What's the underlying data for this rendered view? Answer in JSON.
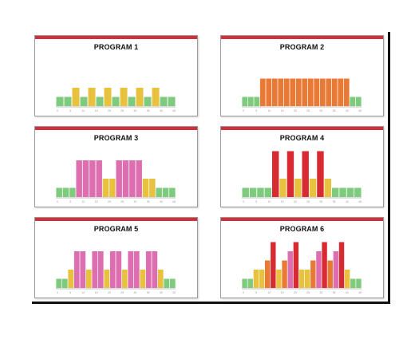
{
  "colors": {
    "green": "#7ecb7e",
    "yellow": "#e8c13e",
    "orange": "#e87a35",
    "pink": "#dd6fb0",
    "red": "#d82a33",
    "header": "#d32f3b",
    "axis": "#bbbbbb"
  },
  "chart_data": [
    {
      "type": "bar",
      "title": "PROGRAM 1",
      "x_ticks": [
        "0",
        "5",
        "10",
        "15",
        "20",
        "25",
        "30",
        "35",
        "40",
        "45"
      ],
      "bars": [
        {
          "v": 1,
          "c": "green"
        },
        {
          "v": 1,
          "c": "green"
        },
        {
          "v": 2,
          "c": "yellow"
        },
        {
          "v": 1,
          "c": "green"
        },
        {
          "v": 2,
          "c": "yellow"
        },
        {
          "v": 1,
          "c": "green"
        },
        {
          "v": 2,
          "c": "yellow"
        },
        {
          "v": 1,
          "c": "green"
        },
        {
          "v": 2,
          "c": "yellow"
        },
        {
          "v": 1,
          "c": "green"
        },
        {
          "v": 2,
          "c": "yellow"
        },
        {
          "v": 1,
          "c": "green"
        },
        {
          "v": 2,
          "c": "yellow"
        },
        {
          "v": 1,
          "c": "green"
        },
        {
          "v": 1,
          "c": "green"
        }
      ]
    },
    {
      "type": "bar",
      "title": "PROGRAM 2",
      "x_ticks": [
        "0",
        "5",
        "10",
        "15",
        "20",
        "25",
        "30",
        "35",
        "40",
        "45"
      ],
      "bars": [
        {
          "v": 1,
          "c": "green"
        },
        {
          "v": 1,
          "c": "green"
        },
        {
          "v": 1,
          "c": "green"
        },
        {
          "v": 3,
          "c": "orange"
        },
        {
          "v": 3,
          "c": "orange"
        },
        {
          "v": 3,
          "c": "orange"
        },
        {
          "v": 3,
          "c": "orange"
        },
        {
          "v": 3,
          "c": "orange"
        },
        {
          "v": 3,
          "c": "orange"
        },
        {
          "v": 3,
          "c": "orange"
        },
        {
          "v": 3,
          "c": "orange"
        },
        {
          "v": 3,
          "c": "orange"
        },
        {
          "v": 3,
          "c": "orange"
        },
        {
          "v": 3,
          "c": "orange"
        },
        {
          "v": 3,
          "c": "orange"
        },
        {
          "v": 3,
          "c": "orange"
        },
        {
          "v": 3,
          "c": "orange"
        },
        {
          "v": 3,
          "c": "orange"
        },
        {
          "v": 1,
          "c": "green"
        },
        {
          "v": 1,
          "c": "green"
        }
      ]
    },
    {
      "type": "bar",
      "title": "PROGRAM 3",
      "x_ticks": [
        "0",
        "5",
        "10",
        "15",
        "20",
        "25",
        "30",
        "35",
        "40",
        "45"
      ],
      "bars": [
        {
          "v": 1,
          "c": "green"
        },
        {
          "v": 1,
          "c": "green"
        },
        {
          "v": 1,
          "c": "green"
        },
        {
          "v": 4,
          "c": "pink"
        },
        {
          "v": 4,
          "c": "pink"
        },
        {
          "v": 4,
          "c": "pink"
        },
        {
          "v": 4,
          "c": "pink"
        },
        {
          "v": 2,
          "c": "yellow"
        },
        {
          "v": 2,
          "c": "yellow"
        },
        {
          "v": 4,
          "c": "pink"
        },
        {
          "v": 4,
          "c": "pink"
        },
        {
          "v": 4,
          "c": "pink"
        },
        {
          "v": 4,
          "c": "pink"
        },
        {
          "v": 2,
          "c": "yellow"
        },
        {
          "v": 2,
          "c": "yellow"
        },
        {
          "v": 1,
          "c": "green"
        },
        {
          "v": 1,
          "c": "green"
        },
        {
          "v": 1,
          "c": "green"
        }
      ]
    },
    {
      "type": "bar",
      "title": "PROGRAM 4",
      "x_ticks": [
        "0",
        "5",
        "10",
        "15",
        "20",
        "25",
        "30",
        "35",
        "40",
        "45"
      ],
      "bars": [
        {
          "v": 1,
          "c": "green"
        },
        {
          "v": 1,
          "c": "green"
        },
        {
          "v": 1,
          "c": "green"
        },
        {
          "v": 1,
          "c": "green"
        },
        {
          "v": 5,
          "c": "red"
        },
        {
          "v": 2,
          "c": "yellow"
        },
        {
          "v": 5,
          "c": "red"
        },
        {
          "v": 2,
          "c": "yellow"
        },
        {
          "v": 5,
          "c": "red"
        },
        {
          "v": 2,
          "c": "yellow"
        },
        {
          "v": 5,
          "c": "red"
        },
        {
          "v": 2,
          "c": "yellow"
        },
        {
          "v": 1,
          "c": "green"
        },
        {
          "v": 1,
          "c": "green"
        },
        {
          "v": 1,
          "c": "green"
        },
        {
          "v": 1,
          "c": "green"
        }
      ]
    },
    {
      "type": "bar",
      "title": "PROGRAM 5",
      "x_ticks": [
        "0",
        "5",
        "10",
        "15",
        "20",
        "25",
        "30",
        "35",
        "40",
        "45"
      ],
      "bars": [
        {
          "v": 1,
          "c": "green"
        },
        {
          "v": 1,
          "c": "green"
        },
        {
          "v": 2,
          "c": "yellow"
        },
        {
          "v": 4,
          "c": "pink"
        },
        {
          "v": 4,
          "c": "pink"
        },
        {
          "v": 2,
          "c": "yellow"
        },
        {
          "v": 4,
          "c": "pink"
        },
        {
          "v": 4,
          "c": "pink"
        },
        {
          "v": 2,
          "c": "yellow"
        },
        {
          "v": 4,
          "c": "pink"
        },
        {
          "v": 4,
          "c": "pink"
        },
        {
          "v": 2,
          "c": "yellow"
        },
        {
          "v": 4,
          "c": "pink"
        },
        {
          "v": 4,
          "c": "pink"
        },
        {
          "v": 2,
          "c": "yellow"
        },
        {
          "v": 4,
          "c": "pink"
        },
        {
          "v": 4,
          "c": "pink"
        },
        {
          "v": 2,
          "c": "yellow"
        },
        {
          "v": 1,
          "c": "green"
        },
        {
          "v": 1,
          "c": "green"
        }
      ]
    },
    {
      "type": "bar",
      "title": "PROGRAM 6",
      "x_ticks": [
        "0",
        "5",
        "10",
        "15",
        "20",
        "25",
        "30",
        "35",
        "40",
        "45"
      ],
      "bars": [
        {
          "v": 1,
          "c": "green"
        },
        {
          "v": 1,
          "c": "green"
        },
        {
          "v": 2,
          "c": "yellow"
        },
        {
          "v": 2,
          "c": "yellow"
        },
        {
          "v": 3,
          "c": "orange"
        },
        {
          "v": 5,
          "c": "red"
        },
        {
          "v": 2,
          "c": "yellow"
        },
        {
          "v": 3,
          "c": "orange"
        },
        {
          "v": 4,
          "c": "pink"
        },
        {
          "v": 5,
          "c": "red"
        },
        {
          "v": 2,
          "c": "yellow"
        },
        {
          "v": 2,
          "c": "yellow"
        },
        {
          "v": 3,
          "c": "orange"
        },
        {
          "v": 4,
          "c": "pink"
        },
        {
          "v": 5,
          "c": "red"
        },
        {
          "v": 3,
          "c": "orange"
        },
        {
          "v": 4,
          "c": "pink"
        },
        {
          "v": 5,
          "c": "red"
        },
        {
          "v": 2,
          "c": "yellow"
        },
        {
          "v": 1,
          "c": "green"
        },
        {
          "v": 1,
          "c": "green"
        }
      ]
    }
  ]
}
